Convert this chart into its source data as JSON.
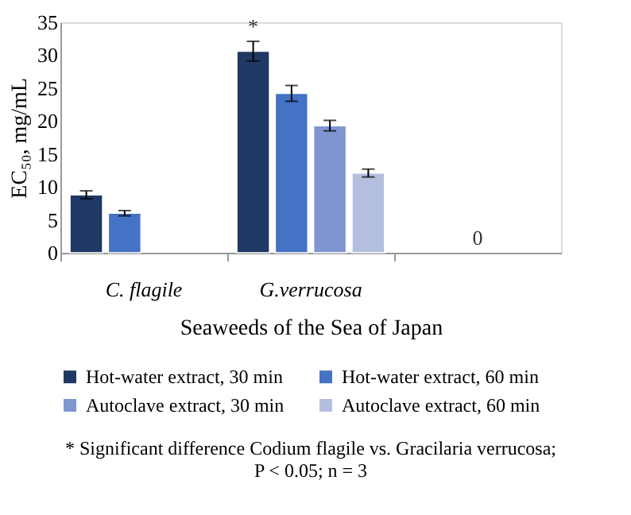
{
  "chart_data": {
    "type": "bar",
    "ylabel": "EC₅₀, mg/mL",
    "xlabel": "Seaweeds of the Sea of Japan",
    "categories": [
      "C. flagile",
      "G.verrucosa",
      null
    ],
    "series": [
      {
        "name": "Hot-water extract, 30 min",
        "color": "#1f3864",
        "values": [
          8.8,
          30.6,
          null
        ],
        "errors": [
          0.6,
          1.5,
          null
        ]
      },
      {
        "name": "Hot-water extract, 60 min",
        "color": "#4472c4",
        "values": [
          6.0,
          24.2,
          null
        ],
        "errors": [
          0.4,
          1.2,
          null
        ]
      },
      {
        "name": "Autoclave extract, 30 min",
        "color": "#7f96d0",
        "values": [
          null,
          19.3,
          null
        ],
        "errors": [
          null,
          0.8,
          null
        ]
      },
      {
        "name": "Autoclave extract, 60 min",
        "color": "#b4bfe0",
        "values": [
          null,
          12.1,
          null
        ],
        "errors": [
          null,
          0.6,
          null
        ]
      }
    ],
    "ylim": [
      0,
      35
    ],
    "yticks": [
      0,
      5,
      10,
      15,
      20,
      25,
      30,
      35
    ],
    "grid": false,
    "legend": "bottom",
    "annotations": [
      "*",
      "0",
      "* Significant difference Codium flagile vs. Gracilaria verrucosa;",
      "P < 0.05; n = 3"
    ]
  }
}
